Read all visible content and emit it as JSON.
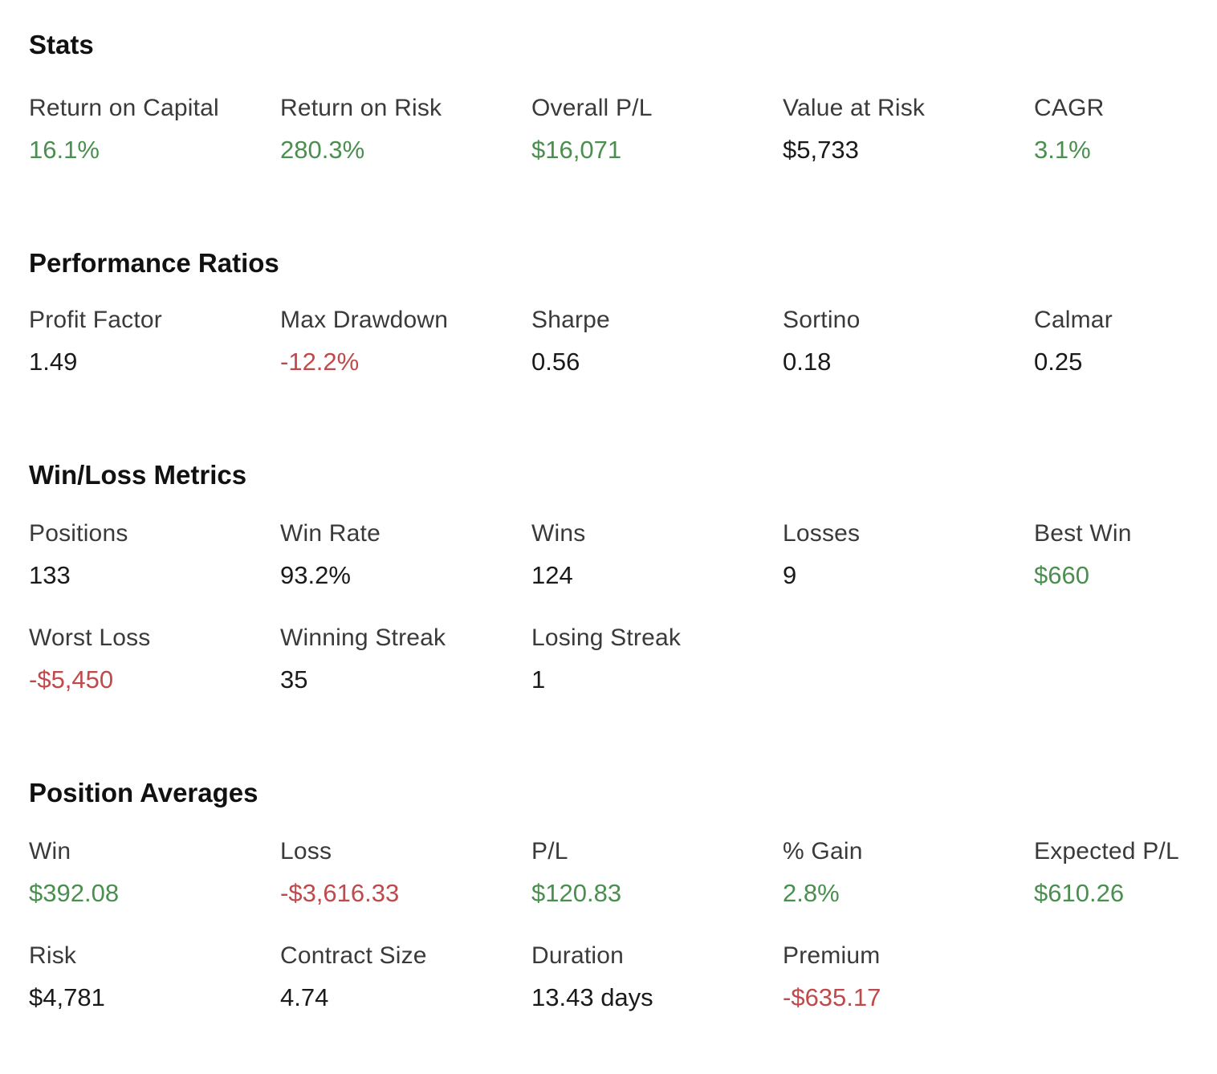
{
  "colors": {
    "positive": "#4a8f4f",
    "negative": "#c0494b",
    "neutral": "#1a1a1a"
  },
  "stats": {
    "title": "Stats",
    "metrics": [
      {
        "label": "Return on Capital",
        "value": "16.1%",
        "tone": "positive"
      },
      {
        "label": "Return on Risk",
        "value": "280.3%",
        "tone": "positive"
      },
      {
        "label": "Overall P/L",
        "value": "$16,071",
        "tone": "positive"
      },
      {
        "label": "Value at Risk",
        "value": "$5,733",
        "tone": "neutral"
      },
      {
        "label": "CAGR",
        "value": "3.1%",
        "tone": "positive"
      }
    ]
  },
  "performance_ratios": {
    "title": "Performance Ratios",
    "metrics": [
      {
        "label": "Profit Factor",
        "value": "1.49",
        "tone": "neutral"
      },
      {
        "label": "Max Drawdown",
        "value": "-12.2%",
        "tone": "negative"
      },
      {
        "label": "Sharpe",
        "value": "0.56",
        "tone": "neutral"
      },
      {
        "label": "Sortino",
        "value": "0.18",
        "tone": "neutral"
      },
      {
        "label": "Calmar",
        "value": "0.25",
        "tone": "neutral"
      }
    ]
  },
  "win_loss_metrics": {
    "title": "Win/Loss Metrics",
    "metrics": [
      {
        "label": "Positions",
        "value": "133",
        "tone": "neutral"
      },
      {
        "label": "Win Rate",
        "value": "93.2%",
        "tone": "neutral"
      },
      {
        "label": "Wins",
        "value": "124",
        "tone": "neutral"
      },
      {
        "label": "Losses",
        "value": "9",
        "tone": "neutral"
      },
      {
        "label": "Best Win",
        "value": "$660",
        "tone": "positive"
      },
      {
        "label": "Worst Loss",
        "value": "-$5,450",
        "tone": "negative"
      },
      {
        "label": "Winning Streak",
        "value": "35",
        "tone": "neutral"
      },
      {
        "label": "Losing Streak",
        "value": "1",
        "tone": "neutral"
      }
    ]
  },
  "position_averages": {
    "title": "Position Averages",
    "metrics": [
      {
        "label": "Win",
        "value": "$392.08",
        "tone": "positive"
      },
      {
        "label": "Loss",
        "value": "-$3,616.33",
        "tone": "negative"
      },
      {
        "label": "P/L",
        "value": "$120.83",
        "tone": "positive"
      },
      {
        "label": "% Gain",
        "value": "2.8%",
        "tone": "positive"
      },
      {
        "label": "Expected P/L",
        "value": "$610.26",
        "tone": "positive"
      },
      {
        "label": "Risk",
        "value": "$4,781",
        "tone": "neutral"
      },
      {
        "label": "Contract Size",
        "value": "4.74",
        "tone": "neutral"
      },
      {
        "label": "Duration",
        "value": "13.43 days",
        "tone": "neutral"
      },
      {
        "label": "Premium",
        "value": "-$635.17",
        "tone": "negative"
      }
    ]
  }
}
